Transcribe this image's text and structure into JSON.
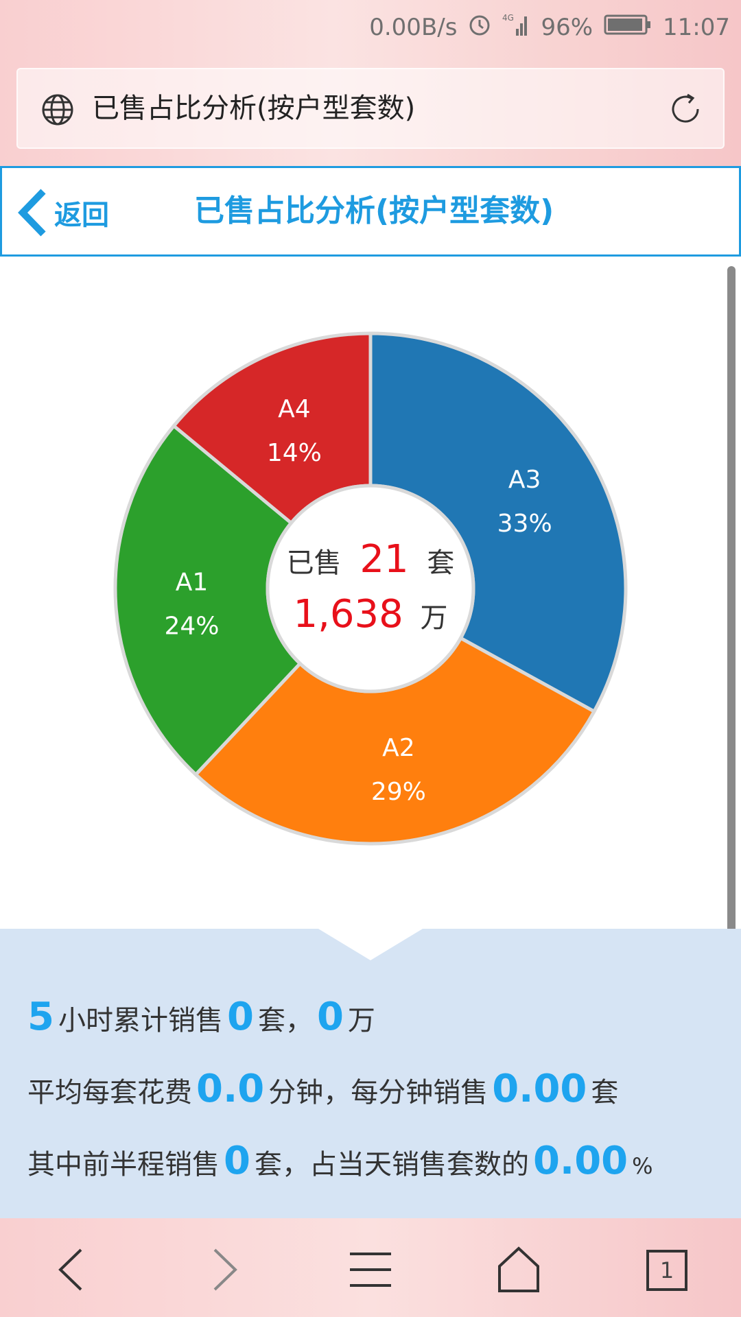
{
  "status_bar": {
    "network_speed": "0.00B/s",
    "network_type": "4G",
    "battery": "96%",
    "time": "11:07"
  },
  "browser": {
    "address_title": "已售占比分析(按户型套数)"
  },
  "header": {
    "back_label": "返回",
    "title": "已售占比分析(按户型套数)"
  },
  "chart_data": {
    "type": "pie",
    "categories": [
      "A3",
      "A2",
      "A1",
      "A4"
    ],
    "values": [
      33,
      29,
      24,
      14
    ],
    "labels": [
      "33%",
      "29%",
      "24%",
      "14%"
    ],
    "colors": [
      "#2077b4",
      "#ff7f0e",
      "#2ca02c",
      "#d62728"
    ],
    "center": {
      "prefix": "已售",
      "count": "21",
      "count_unit": "套",
      "amount": "1,638",
      "amount_unit": "万"
    }
  },
  "stats": {
    "line1": {
      "hours": "5",
      "text1": "小时累计销售",
      "sets": "0",
      "text2": "套，",
      "amount": "0",
      "text3": "万"
    },
    "line2": {
      "text1": "平均每套花费",
      "minutes": "0.0",
      "text2": "分钟，每分钟销售",
      "rate": "0.00",
      "text3": "套"
    },
    "line3": {
      "text1": "其中前半程销售",
      "sets": "0",
      "text2": "套，占当天销售套数的",
      "pct": "0.00",
      "text3": "%"
    }
  },
  "bottom_nav": {
    "tab_count": "1"
  }
}
